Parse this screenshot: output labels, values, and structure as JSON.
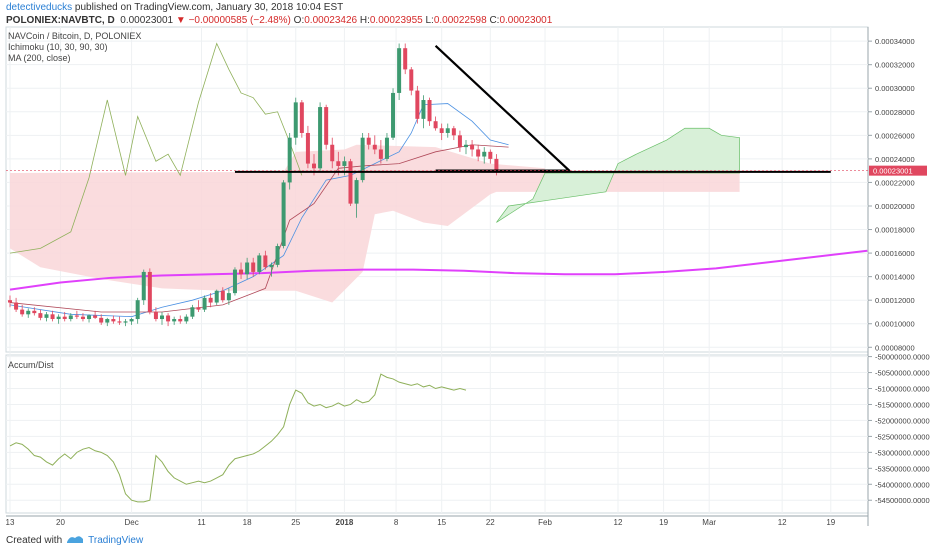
{
  "header": {
    "author": "detectiveducks",
    "published": " published on TradingView.com, January 30, 2018 10:04 EST",
    "symbol": "POLONIEX:NAVBTC, D",
    "last": "0.00023001",
    "change": "▼ −0.00000585 (−2.48%)",
    "o_label": "O:",
    "o_value": "0.00023426",
    "h_label": "H:",
    "h_value": "0.00023955",
    "l_label": "L:",
    "l_value": "0.00022598",
    "c_label": "C:",
    "c_value": "0.00023001"
  },
  "legend": {
    "line1": "NAVCoin / Bitcoin, D, POLONIEX",
    "line2": "Ichimoku (10, 30, 90, 30)",
    "line3": "MA (200, close)"
  },
  "indicator_title": "Accum/Dist",
  "footer": {
    "created_with": "Created with",
    "brand": "TradingView"
  },
  "colors": {
    "up": "#3d9970",
    "down": "#e0475f",
    "ma": "#e040fb",
    "cloud_red": "#f9d6d8",
    "cloud_green": "#d8f0d8",
    "lagging": "#8fb05a",
    "tenkan": "#4a90e2",
    "kijun": "#b04a5a",
    "accent": "#2a7fd4"
  },
  "chart_data": [
    {
      "type": "candlestick",
      "title": "NAVCoin / Bitcoin, D, POLONIEX",
      "x_tick_labels": [
        "13",
        "20",
        "Dec",
        "11",
        "18",
        "25",
        "2018",
        "8",
        "15",
        "22",
        "Feb",
        "12",
        "19",
        "Mar",
        "12",
        "19"
      ],
      "y_tick_labels": [
        "0.00034000",
        "0.00032000",
        "0.00030000",
        "0.00028000",
        "0.00026000",
        "0.00024000",
        "0.00022000",
        "0.00020000",
        "0.00018000",
        "0.00016000",
        "0.00014000",
        "0.00012000",
        "0.00010000",
        "0.00008000"
      ],
      "ylim": [
        7.6e-05,
        0.000352
      ],
      "last_price_label": "0.00023001",
      "candles_approx": [
        [
          0.00012,
          0.000124,
          0.000114,
          0.000118
        ],
        [
          0.000118,
          0.000122,
          0.00011,
          0.000112
        ],
        [
          0.000112,
          0.000116,
          0.000106,
          0.000108
        ],
        [
          0.000108,
          0.000113,
          0.000105,
          0.000111
        ],
        [
          0.000111,
          0.000114,
          0.000107,
          0.000109
        ],
        [
          0.000109,
          0.000112,
          0.000103,
          0.000105
        ],
        [
          0.000105,
          0.00011,
          0.000102,
          0.000108
        ],
        [
          0.000108,
          0.000111,
          0.000102,
          0.000104
        ],
        [
          0.000104,
          0.000108,
          0.0001,
          0.000106
        ],
        [
          0.000106,
          0.00011,
          0.000102,
          0.000104
        ],
        [
          0.000104,
          0.000109,
          0.000102,
          0.000107
        ],
        [
          0.000107,
          0.000111,
          0.000104,
          0.000106
        ],
        [
          0.000106,
          0.000109,
          0.000102,
          0.000104
        ],
        [
          0.000104,
          0.000108,
          0.000101,
          0.000107
        ],
        [
          0.000107,
          0.000111,
          0.000104,
          0.000105
        ],
        [
          0.000105,
          0.000108,
          9.9e-05,
          0.000101
        ],
        [
          0.000101,
          0.000105,
          9.8e-05,
          0.000104
        ],
        [
          0.000104,
          0.000107,
          0.0001,
          0.000102
        ],
        [
          0.000102,
          0.000106,
          9.9e-05,
          0.000101
        ],
        [
          0.000101,
          0.000104,
          9.8e-05,
          0.000102
        ],
        [
          0.000102,
          0.000105,
          9.9e-05,
          0.000104
        ],
        [
          0.000104,
          0.000122,
          0.0001,
          0.00012
        ],
        [
          0.00012,
          0.000146,
          0.000116,
          0.000144
        ],
        [
          0.000144,
          0.000147,
          0.000108,
          0.00011
        ],
        [
          0.00011,
          0.000114,
          0.000102,
          0.000104
        ],
        [
          0.000104,
          0.00011,
          9.9e-05,
          0.000107
        ],
        [
          0.000107,
          0.000109,
          9.8e-05,
          0.000102
        ],
        [
          0.000102,
          0.000106,
          9.9e-05,
          0.000104
        ],
        [
          0.000104,
          0.000107,
          0.0001,
          0.000102
        ],
        [
          0.000102,
          0.000108,
          0.0001,
          0.000106
        ],
        [
          0.000106,
          0.000116,
          0.000104,
          0.000114
        ],
        [
          0.000114,
          0.00012,
          0.00011,
          0.000112
        ],
        [
          0.000112,
          0.000124,
          0.00011,
          0.000122
        ],
        [
          0.000122,
          0.000126,
          0.000114,
          0.000118
        ],
        [
          0.000118,
          0.000129,
          0.000116,
          0.000128
        ],
        [
          0.000128,
          0.000131,
          0.000118,
          0.00012
        ],
        [
          0.00012,
          0.00013,
          0.000116,
          0.000126
        ],
        [
          0.000126,
          0.000148,
          0.000124,
          0.000146
        ],
        [
          0.000146,
          0.000152,
          0.000138,
          0.000142
        ],
        [
          0.000142,
          0.000156,
          0.000138,
          0.000152
        ],
        [
          0.000152,
          0.000156,
          0.00014,
          0.000144
        ],
        [
          0.000144,
          0.00016,
          0.000142,
          0.000158
        ],
        [
          0.000158,
          0.000162,
          0.000146,
          0.000148
        ],
        [
          0.000148,
          0.000152,
          0.00014,
          0.00015
        ],
        [
          0.00015,
          0.000168,
          0.000148,
          0.000166
        ],
        [
          0.000166,
          0.000222,
          0.000164,
          0.00022
        ],
        [
          0.00022,
          0.000262,
          0.000214,
          0.000258
        ],
        [
          0.000258,
          0.000292,
          0.000252,
          0.000288
        ],
        [
          0.000288,
          0.00029,
          0.000258,
          0.000262
        ],
        [
          0.000262,
          0.000268,
          0.000232,
          0.000236
        ],
        [
          0.000236,
          0.000244,
          0.000226,
          0.000232
        ],
        [
          0.000232,
          0.000288,
          0.00023,
          0.000284
        ],
        [
          0.000284,
          0.000286,
          0.000248,
          0.000252
        ],
        [
          0.000252,
          0.000258,
          0.000232,
          0.000238
        ],
        [
          0.000238,
          0.000246,
          0.000226,
          0.000234
        ],
        [
          0.000234,
          0.000242,
          0.000226,
          0.000238
        ],
        [
          0.000238,
          0.00024,
          0.0002,
          0.000202
        ],
        [
          0.000202,
          0.000224,
          0.00019,
          0.000222
        ],
        [
          0.000222,
          0.000262,
          0.00022,
          0.000258
        ],
        [
          0.000258,
          0.000262,
          0.000248,
          0.000252
        ],
        [
          0.000252,
          0.00026,
          0.000244,
          0.000248
        ],
        [
          0.000248,
          0.000256,
          0.000236,
          0.00024
        ],
        [
          0.00024,
          0.000262,
          0.000238,
          0.000258
        ],
        [
          0.000258,
          0.0003,
          0.000256,
          0.000296
        ],
        [
          0.000296,
          0.000338,
          0.00029,
          0.000334
        ],
        [
          0.000334,
          0.000338,
          0.000312,
          0.000316
        ],
        [
          0.000316,
          0.000318,
          0.000294,
          0.000298
        ],
        [
          0.000298,
          0.000302,
          0.00027,
          0.000274
        ],
        [
          0.000274,
          0.000294,
          0.000266,
          0.00029
        ],
        [
          0.00029,
          0.000292,
          0.000268,
          0.000272
        ],
        [
          0.000272,
          0.000276,
          0.000264,
          0.000266
        ],
        [
          0.000266,
          0.00027,
          0.000256,
          0.000262
        ],
        [
          0.000262,
          0.00027,
          0.000258,
          0.000266
        ],
        [
          0.000266,
          0.000268,
          0.000256,
          0.00026
        ],
        [
          0.00026,
          0.000264,
          0.000246,
          0.00025
        ],
        [
          0.00025,
          0.000256,
          0.000244,
          0.000252
        ],
        [
          0.000252,
          0.000256,
          0.000242,
          0.000248
        ],
        [
          0.000248,
          0.000252,
          0.000238,
          0.000242
        ],
        [
          0.000242,
          0.00025,
          0.000236,
          0.000246
        ],
        [
          0.000246,
          0.000248,
          0.000236,
          0.00024
        ],
        [
          0.00024,
          0.000244,
          0.000226,
          0.00023
        ]
      ],
      "ma200_approx": [
        0.000129,
        0.000135,
        0.000139,
        0.000141,
        0.000142,
        0.000143,
        0.000145,
        0.000146,
        0.000146,
        0.000145,
        0.000143,
        0.000142,
        0.000142,
        0.000144,
        0.000147,
        0.000152,
        0.000157,
        0.000162
      ],
      "annotations": [
        {
          "type": "horizontal_line",
          "y": 0.000229,
          "desc": "support"
        },
        {
          "type": "trendline",
          "from": [
            0.000336
          ],
          "to": [
            0.00023
          ],
          "desc": "descending"
        }
      ]
    },
    {
      "type": "line",
      "title": "Accum/Dist",
      "y_tick_labels": [
        "-50000000.0000",
        "-50500000.0000",
        "-51000000.0000",
        "-51500000.0000",
        "-52000000.0000",
        "-52500000.0000",
        "-53000000.0000",
        "-53500000.0000",
        "-54000000.0000",
        "-54500000.0000"
      ],
      "ylim": [
        -54900000,
        -49950000
      ],
      "values_approx": [
        -52800000,
        -52700000,
        -52750000,
        -52900000,
        -53100000,
        -53150000,
        -53300000,
        -53400000,
        -53200000,
        -53050000,
        -53200000,
        -53000000,
        -52900000,
        -52850000,
        -52950000,
        -53000000,
        -53100000,
        -53300000,
        -53700000,
        -54300000,
        -54500000,
        -54550000,
        -54550000,
        -54500000,
        -53100000,
        -53300000,
        -53600000,
        -53800000,
        -53900000,
        -54000000,
        -53950000,
        -53900000,
        -53950000,
        -53900000,
        -53800000,
        -53700000,
        -53400000,
        -53200000,
        -53150000,
        -53100000,
        -53050000,
        -52950000,
        -52800000,
        -52650000,
        -52450000,
        -52200000,
        -51500000,
        -51050000,
        -51150000,
        -51450000,
        -51550000,
        -51500000,
        -51600000,
        -51550000,
        -51450000,
        -51550000,
        -51500000,
        -51350000,
        -51450000,
        -51400000,
        -51200000,
        -50550000,
        -50650000,
        -50700000,
        -50800000,
        -50850000,
        -50900000,
        -50850000,
        -50950000,
        -50900000,
        -51000000,
        -50950000,
        -51000000,
        -51050000,
        -51000000,
        -51050000
      ]
    }
  ]
}
